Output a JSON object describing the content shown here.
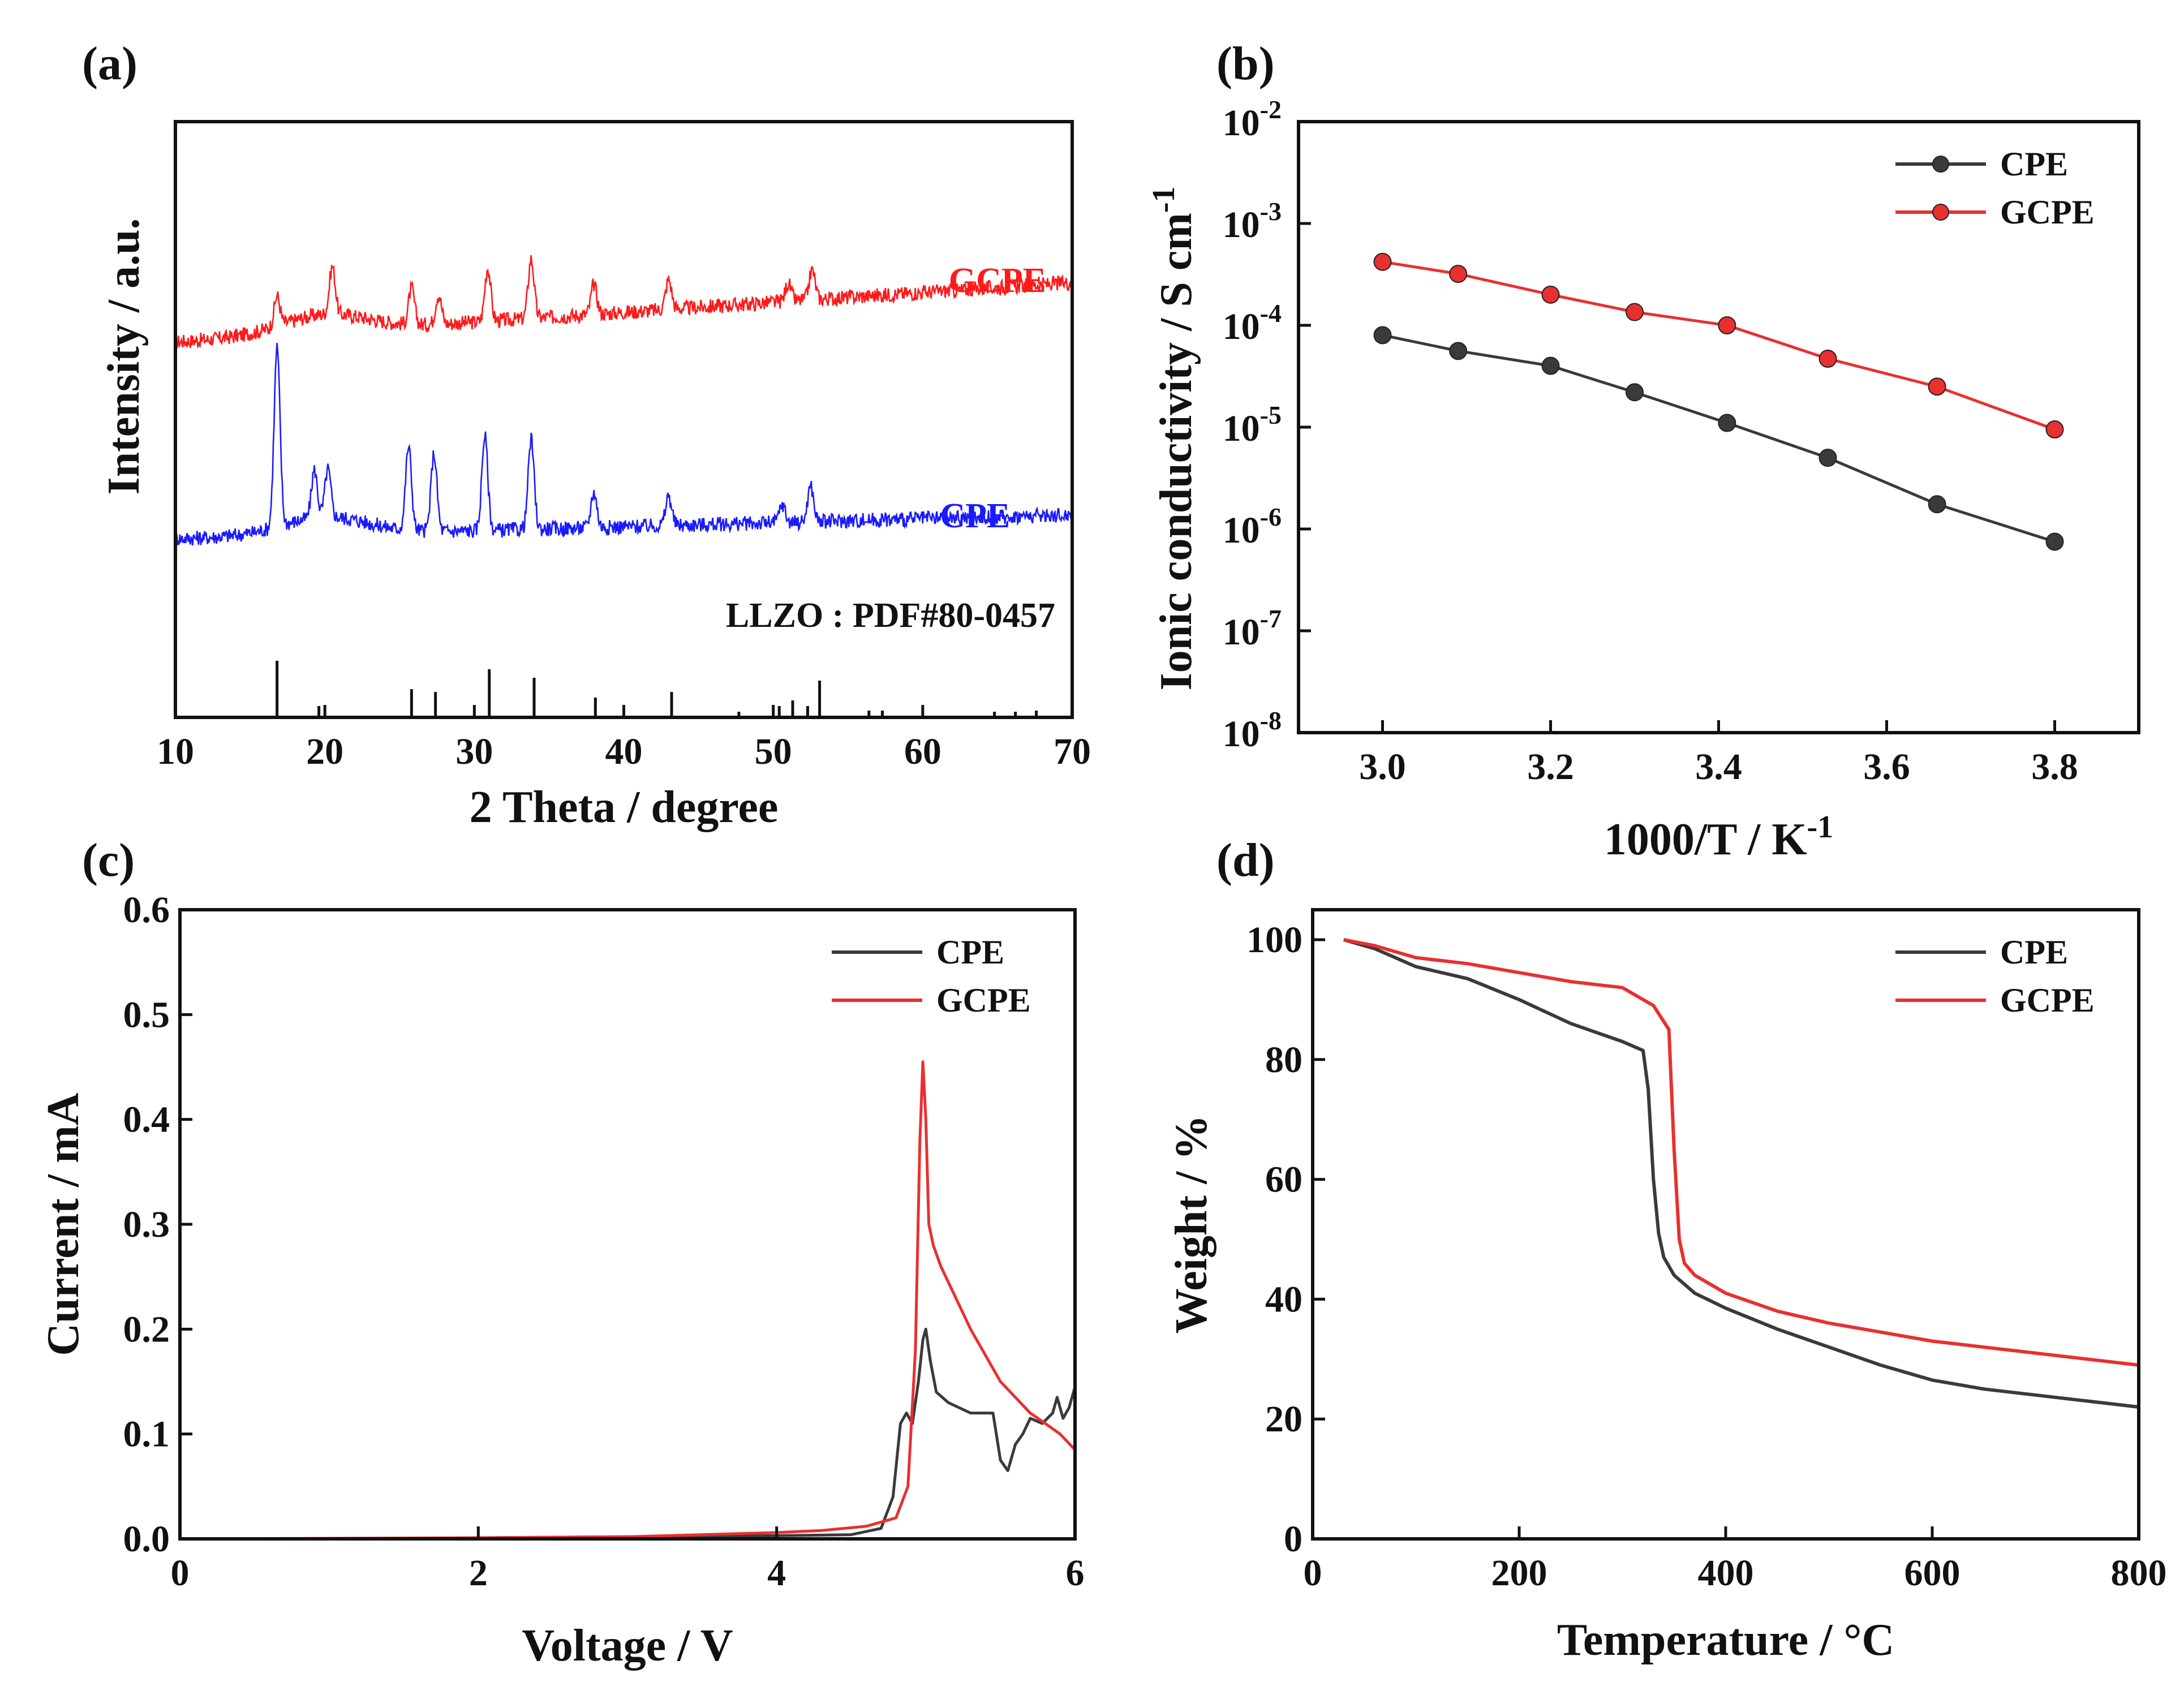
{
  "panels": [
    {
      "id": "a",
      "label": "(a)",
      "chart_data": {
        "type": "line",
        "xlabel": "2 Theta / degree",
        "ylabel": "Intensity / a.u.",
        "xlim": [
          10,
          70
        ],
        "xticks": [
          10,
          20,
          30,
          40,
          50,
          60,
          70
        ],
        "yticks_shown": false,
        "annotations": [
          {
            "text": "GCPE",
            "color": "#ff1a1a"
          },
          {
            "text": "CPE",
            "color": "#1a1aff"
          },
          {
            "text": "LLZO : PDF#80-0457",
            "color": "#111111"
          }
        ],
        "series": [
          {
            "name": "GCPE",
            "color": "#ff1a1a",
            "baseline": 0.63,
            "endline": 0.73,
            "peaks": [
              [
                16.8,
                0.05
              ],
              [
                20.5,
                0.08
              ],
              [
                25.8,
                0.06
              ],
              [
                27.6,
                0.05
              ],
              [
                30.9,
                0.09
              ],
              [
                33.8,
                0.1
              ],
              [
                38.0,
                0.05
              ],
              [
                43.0,
                0.05
              ],
              [
                51.0,
                0.03
              ],
              [
                52.6,
                0.05
              ]
            ]
          },
          {
            "name": "CPE",
            "color": "#1a1aff",
            "baseline": 0.3,
            "endline": 0.34,
            "peaks": [
              [
                16.8,
                0.3
              ],
              [
                19.3,
                0.08
              ],
              [
                20.2,
                0.08
              ],
              [
                25.6,
                0.14
              ],
              [
                27.3,
                0.13
              ],
              [
                30.7,
                0.16
              ],
              [
                33.8,
                0.15
              ],
              [
                38.0,
                0.06
              ],
              [
                43.0,
                0.05
              ],
              [
                50.6,
                0.03
              ],
              [
                52.5,
                0.06
              ]
            ]
          }
        ],
        "reference": {
          "name": "LLZO : PDF#80-0457",
          "sticks": [
            [
              16.8,
              1.0
            ],
            [
              19.6,
              0.2
            ],
            [
              25.8,
              0.5
            ],
            [
              27.4,
              0.45
            ],
            [
              31.0,
              0.85
            ],
            [
              34.0,
              0.7
            ],
            [
              38.1,
              0.35
            ],
            [
              43.2,
              0.45
            ],
            [
              47.7,
              0.1
            ],
            [
              50.4,
              0.2
            ],
            [
              51.3,
              0.3
            ],
            [
              52.3,
              0.2
            ],
            [
              53.1,
              0.65
            ],
            [
              56.4,
              0.12
            ],
            [
              57.3,
              0.12
            ],
            [
              64.8,
              0.1
            ],
            [
              66.2,
              0.1
            ],
            [
              67.6,
              0.12
            ]
          ]
        }
      }
    },
    {
      "id": "b",
      "label": "(b)",
      "chart_data": {
        "type": "line",
        "xlabel": "1000/T / K",
        "xlabel_sup": "-1",
        "ylabel": "Ionic conductivity / S cm",
        "ylabel_sup": "-1",
        "xlim": [
          2.9,
          3.9
        ],
        "xticks": [
          3.0,
          3.2,
          3.4,
          3.6,
          3.8
        ],
        "xtick_labels": [
          "3.0",
          "3.2",
          "3.4",
          "3.6",
          "3.8"
        ],
        "yscale": "log",
        "ylim_exp": [
          -8,
          -2
        ],
        "yticks_exp": [
          -8,
          -7,
          -6,
          -5,
          -4,
          -3,
          -2
        ],
        "ytick_base": "10",
        "legend": "top-right",
        "series": [
          {
            "name": "CPE",
            "color": "#3a3a3a",
            "marker": "circle",
            "x": [
              3.0,
              3.09,
              3.2,
              3.3,
              3.41,
              3.53,
              3.66,
              3.8
            ],
            "y": [
              8e-05,
              5.6e-05,
              4e-05,
              2.2e-05,
              1.1e-05,
              5e-06,
              1.75e-06,
              7.5e-07
            ]
          },
          {
            "name": "GCPE",
            "color": "#e8302f",
            "marker": "circle",
            "x": [
              3.0,
              3.09,
              3.2,
              3.3,
              3.41,
              3.53,
              3.66,
              3.8
            ],
            "y": [
              0.00042,
              0.00032,
              0.0002,
              0.000135,
              0.0001,
              4.7e-05,
              2.5e-05,
              9.5e-06
            ]
          }
        ]
      }
    },
    {
      "id": "c",
      "label": "(c)",
      "chart_data": {
        "type": "line",
        "xlabel": "Voltage / V",
        "ylabel": "Current / mA",
        "xlim": [
          0,
          6
        ],
        "ylim": [
          0,
          0.6
        ],
        "xticks": [
          0,
          2,
          4,
          6
        ],
        "yticks": [
          0.0,
          0.1,
          0.2,
          0.3,
          0.4,
          0.5,
          0.6
        ],
        "ytick_labels": [
          "0.0",
          "0.1",
          "0.2",
          "0.3",
          "0.4",
          "0.5",
          "0.6"
        ],
        "legend": "top-right",
        "series": [
          {
            "name": "CPE",
            "color": "#3a3a3a",
            "x": [
              0,
              1,
              2,
              3,
              4,
              4.5,
              4.7,
              4.78,
              4.83,
              4.87,
              4.91,
              4.95,
              4.98,
              5.0,
              5.03,
              5.07,
              5.15,
              5.3,
              5.45,
              5.5,
              5.55,
              5.6,
              5.65,
              5.7,
              5.78,
              5.85,
              5.88,
              5.92,
              5.96,
              6.0
            ],
            "y": [
              0,
              0,
              0.001,
              0.002,
              0.003,
              0.004,
              0.01,
              0.04,
              0.11,
              0.12,
              0.11,
              0.15,
              0.19,
              0.2,
              0.17,
              0.14,
              0.13,
              0.12,
              0.12,
              0.075,
              0.065,
              0.09,
              0.1,
              0.115,
              0.11,
              0.12,
              0.135,
              0.115,
              0.125,
              0.145
            ]
          },
          {
            "name": "GCPE",
            "color": "#e8302f",
            "x": [
              0,
              1,
              2,
              3,
              3.5,
              4,
              4.3,
              4.6,
              4.8,
              4.88,
              4.93,
              4.96,
              4.98,
              5.0,
              5.02,
              5.05,
              5.1,
              5.2,
              5.3,
              5.4,
              5.5,
              5.6,
              5.7,
              5.8,
              5.9,
              6.0
            ],
            "y": [
              0,
              0.0005,
              0.001,
              0.002,
              0.004,
              0.006,
              0.008,
              0.012,
              0.02,
              0.05,
              0.18,
              0.38,
              0.455,
              0.4,
              0.3,
              0.28,
              0.26,
              0.23,
              0.2,
              0.175,
              0.15,
              0.135,
              0.12,
              0.11,
              0.1,
              0.085
            ]
          }
        ]
      }
    },
    {
      "id": "d",
      "label": "(d)",
      "chart_data": {
        "type": "line",
        "xlabel": "Temperature / °C",
        "ylabel": "Weight / %",
        "xlim": [
          0,
          800
        ],
        "ylim": [
          0,
          105
        ],
        "xticks": [
          0,
          200,
          400,
          600,
          800
        ],
        "yticks": [
          0,
          20,
          40,
          60,
          80,
          100
        ],
        "legend": "top-right",
        "series": [
          {
            "name": "CPE",
            "color": "#3a3a3a",
            "x": [
              30,
              60,
              100,
              150,
              200,
              250,
              300,
              320,
              325,
              330,
              335,
              340,
              350,
              370,
              400,
              450,
              500,
              550,
              600,
              650,
              700,
              750,
              800
            ],
            "y": [
              100,
              98.5,
              95.5,
              93.5,
              90,
              86,
              83,
              81.5,
              75,
              60,
              51,
              47,
              44,
              41,
              38.5,
              35,
              32,
              29,
              26.5,
              25,
              24,
              23,
              22
            ]
          },
          {
            "name": "GCPE",
            "color": "#e8302f",
            "x": [
              30,
              60,
              100,
              150,
              200,
              250,
              300,
              330,
              345,
              350,
              355,
              360,
              370,
              400,
              450,
              500,
              550,
              600,
              650,
              700,
              750,
              800
            ],
            "y": [
              100,
              99,
              97,
              96,
              94.5,
              93,
              92,
              89,
              85,
              65,
              50,
              46,
              44,
              41,
              38,
              36,
              34.5,
              33,
              32,
              31,
              30,
              29
            ]
          }
        ]
      }
    }
  ]
}
